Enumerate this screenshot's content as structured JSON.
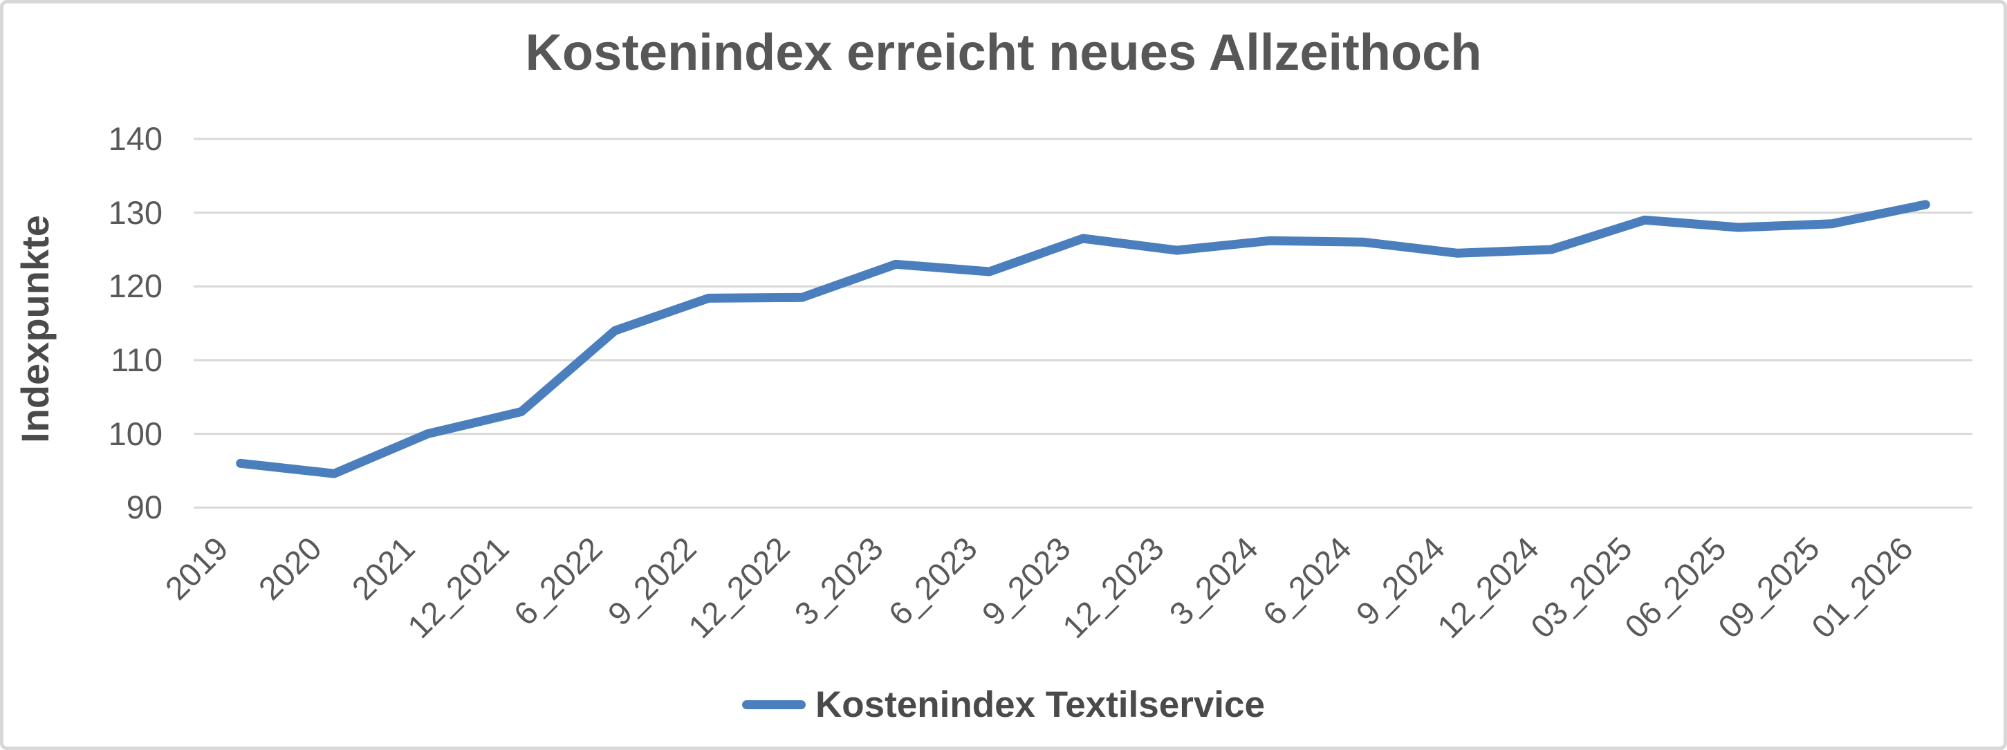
{
  "title": "Kostenindex erreicht neues Allzeithoch",
  "y_axis_title": "Indexpunkte",
  "legend": {
    "series_label": "Kostenindex Textilservice"
  },
  "colors": {
    "line": "#4A7EBD",
    "grid": "#D9D9D9",
    "title_text": "#575757",
    "axis_text": "#595959",
    "border": "#D8D8D8",
    "background": "#FFFFFF"
  },
  "chart_data": {
    "type": "line",
    "title": "Kostenindex erreicht neues Allzeithoch",
    "xlabel": "",
    "ylabel": "Indexpunkte",
    "ylim": [
      90,
      140
    ],
    "yticks": [
      90,
      100,
      110,
      120,
      130,
      140
    ],
    "grid": "horizontal",
    "legend_position": "bottom",
    "categories": [
      "2019",
      "2020",
      "2021",
      "12_2021",
      "6_2022",
      "9_2022",
      "12_2022",
      "3_2023",
      "6_2023",
      "9_2023",
      "12_2023",
      "3_2024",
      "6_2024",
      "9_2024",
      "12_2024",
      "03_2025",
      "06_2025",
      "09_2025",
      "01_2026"
    ],
    "series": [
      {
        "name": "Kostenindex Textilservice",
        "values": [
          96,
          94.6,
          100,
          103,
          114,
          118.4,
          118.5,
          123,
          122,
          126.5,
          124.9,
          126.2,
          126,
          124.5,
          125,
          129,
          128,
          128.5,
          131.1
        ]
      }
    ]
  }
}
